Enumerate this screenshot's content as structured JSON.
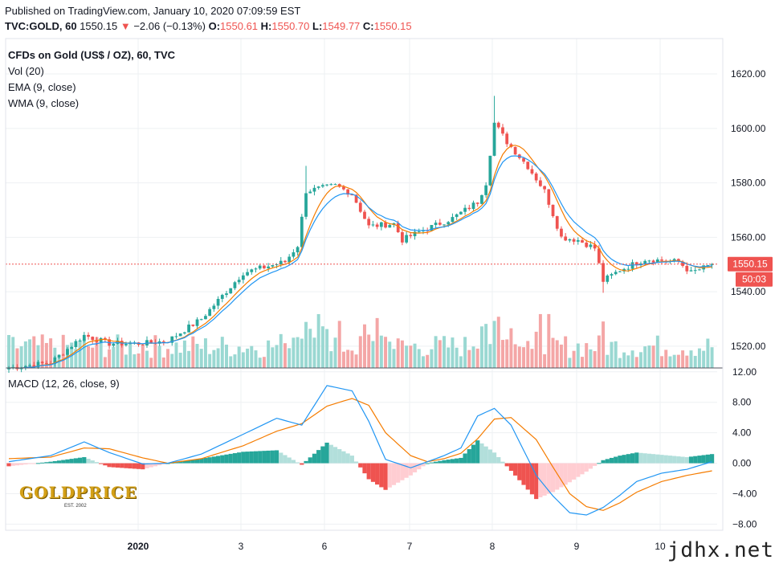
{
  "header": {
    "published": "Published on TradingView.com, January 10, 2020 07:09:59 EST",
    "symbol": "TVC:GOLD, 60",
    "last": "1550.15",
    "change_arrow": "▼",
    "change": "−2.06 (−0.13%)",
    "o_label": "O:",
    "o_value": "1550.61",
    "h_label": "H:",
    "h_value": "1550.70",
    "l_label": "L:",
    "l_value": "1549.77",
    "c_label": "C:",
    "c_value": "1550.15"
  },
  "legend": {
    "title": "CFDs on Gold (US$ / OZ), 60, TVC",
    "vol": "Vol (20)",
    "ema": "EMA (9, close)",
    "wma": "WMA (9, close)",
    "macd": "MACD (12, 26, close, 9)"
  },
  "price_badge": "1550.15",
  "countdown_badge": "50:03",
  "logo_text": "GOLDPRICE",
  "logo_sub": "EST. 2002",
  "watermark": "jdhx.net",
  "colors": {
    "up": "#26a69a",
    "down": "#ef5350",
    "vol_up": "#9ad8d2",
    "vol_down": "#f4a6a6",
    "ema": "#2196f3",
    "wma": "#f57c00",
    "macd": "#2196f3",
    "signal": "#f57c00",
    "grid": "#eef0f3"
  },
  "chart_data": [
    {
      "type": "candlestick",
      "title": "CFDs on Gold (US$ / OZ), 60, TVC",
      "x_ticks": [
        "2020",
        "3",
        "6",
        "7",
        "8",
        "9",
        "10"
      ],
      "y_ticks": [
        "1540.00",
        "1560.00",
        "1580.00",
        "1600.00",
        "1620.00",
        "1520.00"
      ],
      "ylim": [
        1512,
        1633
      ],
      "last_price": 1550.15,
      "key_points": [
        {
          "x": 0,
          "close": 1512
        },
        {
          "x": 10,
          "close": 1514
        },
        {
          "x": 18,
          "close": 1524
        },
        {
          "x": 24,
          "close": 1521
        },
        {
          "x": 32,
          "close": 1521
        },
        {
          "x": 38,
          "close": 1522
        },
        {
          "x": 46,
          "close": 1530
        },
        {
          "x": 56,
          "close": 1547
        },
        {
          "x": 66,
          "close": 1551
        },
        {
          "x": 69,
          "close": 1557
        },
        {
          "x": 71,
          "close": 1577
        },
        {
          "x": 78,
          "close": 1579
        },
        {
          "x": 82,
          "close": 1576
        },
        {
          "x": 86,
          "close": 1564
        },
        {
          "x": 92,
          "close": 1565
        },
        {
          "x": 94,
          "close": 1559
        },
        {
          "x": 98,
          "close": 1562
        },
        {
          "x": 106,
          "close": 1567
        },
        {
          "x": 112,
          "close": 1573
        },
        {
          "x": 114,
          "close": 1580
        },
        {
          "x": 116,
          "close": 1602
        },
        {
          "x": 119,
          "close": 1595
        },
        {
          "x": 124,
          "close": 1586
        },
        {
          "x": 128,
          "close": 1577
        },
        {
          "x": 132,
          "close": 1560
        },
        {
          "x": 136,
          "close": 1559
        },
        {
          "x": 140,
          "close": 1556
        },
        {
          "x": 142,
          "close": 1544
        },
        {
          "x": 146,
          "close": 1548
        },
        {
          "x": 152,
          "close": 1552
        },
        {
          "x": 160,
          "close": 1551
        },
        {
          "x": 163,
          "close": 1547
        },
        {
          "x": 168,
          "close": 1550
        }
      ],
      "annotations": [
        "Vol (20)",
        "EMA (9, close)",
        "WMA (9, close)"
      ]
    },
    {
      "type": "line",
      "title": "MACD (12, 26, close, 9)",
      "y_ticks": [
        "12.00",
        "8.00",
        "4.00",
        "0.00",
        "−4.00",
        "−8.00"
      ],
      "ylim": [
        -8.8,
        12.4
      ],
      "series": [
        {
          "name": "MACD",
          "x": [
            0,
            10,
            18,
            24,
            32,
            38,
            46,
            56,
            64,
            70,
            76,
            82,
            86,
            90,
            96,
            100,
            104,
            108,
            112,
            116,
            120,
            126,
            130,
            134,
            138,
            142,
            146,
            150,
            156,
            162,
            168
          ],
          "values": [
            0.2,
            1.0,
            2.8,
            1.4,
            -0.1,
            0.0,
            1.2,
            3.8,
            5.9,
            5.0,
            10.2,
            9.5,
            5.5,
            0.5,
            -0.6,
            0.2,
            1.0,
            2.0,
            6.2,
            7.2,
            5.0,
            -1.6,
            -4.3,
            -6.5,
            -6.8,
            -5.8,
            -4.2,
            -2.4,
            -1.3,
            -0.8,
            0.2
          ]
        },
        {
          "name": "Signal",
          "x": [
            0,
            10,
            18,
            24,
            32,
            38,
            46,
            56,
            64,
            70,
            76,
            82,
            86,
            90,
            96,
            100,
            104,
            108,
            112,
            116,
            120,
            126,
            130,
            134,
            138,
            142,
            146,
            150,
            156,
            162,
            168
          ],
          "values": [
            0.6,
            0.8,
            2.0,
            1.9,
            0.7,
            0.0,
            0.6,
            2.3,
            4.2,
            5.2,
            7.5,
            8.5,
            7.6,
            4.0,
            1.0,
            0.2,
            0.6,
            1.3,
            3.2,
            5.8,
            6.0,
            3.1,
            -0.5,
            -4.0,
            -5.7,
            -6.2,
            -5.2,
            -3.8,
            -2.4,
            -1.6,
            -1.0
          ]
        }
      ]
    }
  ]
}
